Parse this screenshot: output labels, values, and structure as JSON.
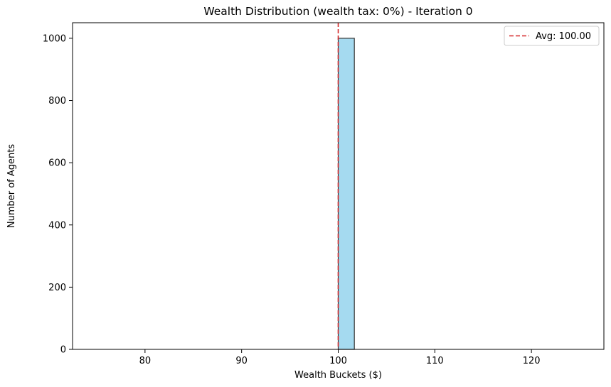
{
  "chart_data": {
    "type": "bar",
    "title": "Wealth Distribution (wealth tax: 0%) - Iteration 0",
    "xlabel": "Wealth Buckets ($)",
    "ylabel": "Number of Agents",
    "xlim": [
      72.5,
      127.5
    ],
    "ylim": [
      0,
      1050
    ],
    "xticks": [
      80,
      90,
      100,
      110,
      120
    ],
    "yticks": [
      0,
      200,
      400,
      600,
      800,
      1000
    ],
    "bins": [
      {
        "x0": 75.0,
        "x1": 76.67,
        "count": 0
      },
      {
        "x0": 100.0,
        "x1": 101.67,
        "count": 1000
      },
      {
        "x0": 123.33,
        "x1": 125.0,
        "count": 0
      }
    ],
    "bar_color": "#87CEEB",
    "bar_edge_color": "#333333",
    "average_line": {
      "value": 100.0,
      "color": "#d62728",
      "style": "dashed"
    },
    "legend": {
      "position": "top-right",
      "entries": [
        "Avg: 100.00"
      ]
    },
    "grid": false
  }
}
